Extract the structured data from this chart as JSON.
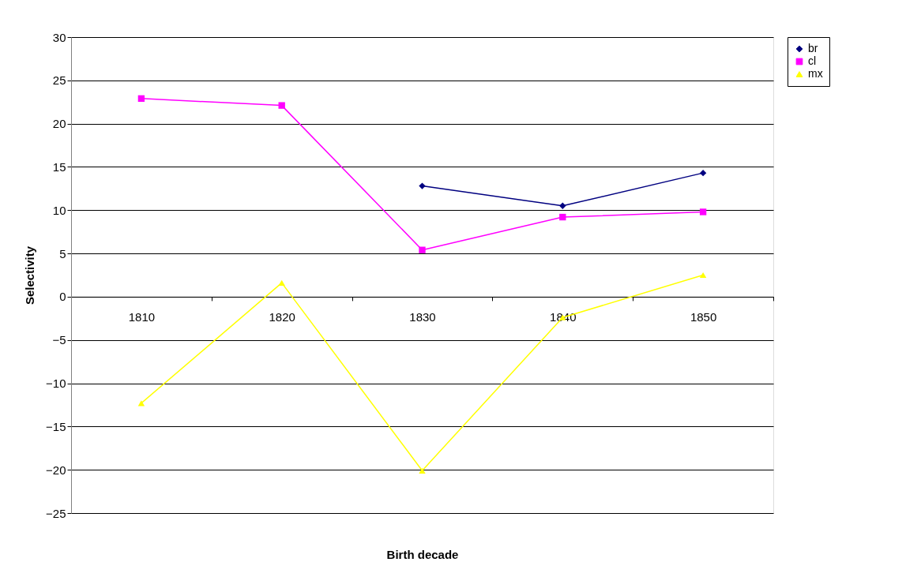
{
  "chart_data": {
    "type": "line",
    "xlabel": "Birth decade",
    "ylabel": "Selectivity",
    "categories": [
      "1810",
      "1820",
      "1830",
      "1840",
      "1850"
    ],
    "series": [
      {
        "name": "br",
        "color": "#000080",
        "marker": "diamond",
        "values": [
          null,
          null,
          12.8,
          10.5,
          14.3
        ]
      },
      {
        "name": "cl",
        "color": "#ff00ff",
        "marker": "square",
        "values": [
          22.9,
          22.1,
          5.4,
          9.2,
          9.8
        ]
      },
      {
        "name": "mx",
        "color": "#ffff00",
        "marker": "triangle",
        "values": [
          -12.3,
          1.6,
          -20.1,
          -2.4,
          2.5
        ]
      }
    ],
    "ylim": [
      -25,
      30
    ],
    "yticks": [
      -25,
      -20,
      -15,
      -10,
      -5,
      0,
      5,
      10,
      15,
      20,
      25,
      30
    ],
    "grid": "y",
    "legend": "right",
    "line_style": "solid"
  }
}
